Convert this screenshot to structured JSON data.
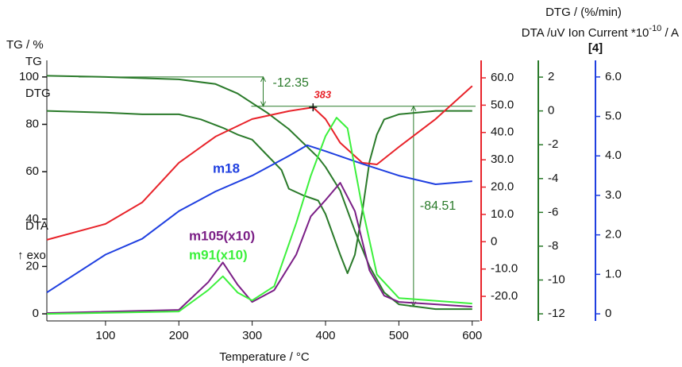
{
  "chart_data": {
    "type": "line",
    "xlabel": "Temperature / °C",
    "ylabel": "TG / %",
    "y3label": "DTG / (%/min)",
    "right_title": {
      "text": "DTA /uV Ion Current *10",
      "sup": "-10",
      "suffix": " / A"
    },
    "y4label": "[4]",
    "exo_label": "↑ exo",
    "xlim": [
      20,
      610
    ],
    "xticks": [
      100,
      200,
      300,
      400,
      500,
      600
    ],
    "ylim": [
      -3,
      107
    ],
    "yticks": [
      0,
      20,
      40,
      60,
      80,
      100
    ],
    "y2lim": [
      -29,
      66.4
    ],
    "y2ticks": [
      {
        "value": -20,
        "label": "-20.0"
      },
      {
        "value": -10,
        "label": "-10.0"
      },
      0,
      {
        "value": 10,
        "label": "10.0"
      },
      {
        "value": 20,
        "label": "20.0"
      },
      {
        "value": 30,
        "label": "30.0"
      },
      {
        "value": 40,
        "label": "40.0"
      },
      {
        "value": 50,
        "label": "50.0"
      },
      {
        "value": 60,
        "label": "60.0"
      }
    ],
    "y3lim": [
      -12.42,
      2.99
    ],
    "y3ticks": [
      -12,
      -10,
      -8,
      -6,
      -4,
      -2,
      0,
      2
    ],
    "y4lim": [
      -0.18,
      6.42
    ],
    "y4ticks": [
      0,
      {
        "value": 1,
        "label": "1.0"
      },
      {
        "value": 2,
        "label": "2.0"
      },
      {
        "value": 3,
        "label": "3.0"
      },
      {
        "value": 4,
        "label": "4.0"
      },
      {
        "value": 5,
        "label": "5.0"
      },
      {
        "value": 6,
        "label": "6.0"
      }
    ],
    "series": [
      {
        "name": "TG",
        "color": "#2a7a2a",
        "axis": "y",
        "x": [
          20,
          100,
          200,
          250,
          280,
          300,
          320,
          350,
          370,
          390,
          400,
          420,
          440,
          460,
          480,
          500,
          550,
          600
        ],
        "values": [
          100.5,
          100,
          99,
          97,
          93,
          89,
          85,
          78,
          72,
          66,
          62,
          52,
          35,
          20,
          9,
          4,
          2,
          2
        ]
      },
      {
        "name": "DTG",
        "color": "#2a7a2a",
        "axis": "y3",
        "x": [
          20,
          100,
          150,
          200,
          230,
          260,
          280,
          300,
          320,
          340,
          350,
          370,
          390,
          400,
          420,
          430,
          440,
          450,
          460,
          470,
          480,
          500,
          550,
          600
        ],
        "values": [
          0,
          -0.1,
          -0.2,
          -0.2,
          -0.5,
          -1,
          -1.4,
          -1.7,
          -2.6,
          -3.5,
          -4.6,
          -5,
          -5.3,
          -6.1,
          -8.5,
          -9.6,
          -8.5,
          -6,
          -3,
          -1.4,
          -0.5,
          -0.2,
          0,
          0
        ]
      },
      {
        "name": "DTA",
        "color": "#e8232a",
        "axis": "y2",
        "x": [
          20,
          100,
          150,
          200,
          250,
          300,
          350,
          383,
          400,
          420,
          450,
          470,
          500,
          550,
          600
        ],
        "values": [
          0.7,
          6.5,
          14.4,
          28.9,
          38.5,
          44.9,
          47.8,
          49.2,
          44.9,
          36.2,
          28.9,
          28.3,
          34.7,
          44.9,
          57
        ]
      },
      {
        "name": "m18",
        "color": "#1f3fe0",
        "axis": "y4",
        "x": [
          20,
          100,
          150,
          200,
          250,
          300,
          350,
          375,
          400,
          450,
          500,
          550,
          600
        ],
        "values": [
          0.54,
          1.5,
          1.9,
          2.6,
          3.1,
          3.5,
          4.0,
          4.27,
          4.12,
          3.8,
          3.5,
          3.28,
          3.36
        ]
      },
      {
        "name": "m105(x10)",
        "color": "#7b1f86",
        "axis": "y4",
        "x": [
          20,
          200,
          240,
          260,
          280,
          300,
          330,
          360,
          380,
          400,
          420,
          440,
          460,
          480,
          500,
          600
        ],
        "values": [
          0.02,
          0.1,
          0.8,
          1.3,
          0.74,
          0.3,
          0.6,
          1.5,
          2.47,
          2.88,
          3.32,
          2.6,
          1.1,
          0.46,
          0.3,
          0.18
        ]
      },
      {
        "name": "m91(x10)",
        "color": "#3cf03c",
        "axis": "y4",
        "x": [
          20,
          200,
          240,
          260,
          280,
          300,
          330,
          360,
          380,
          400,
          415,
          430,
          450,
          470,
          500,
          600
        ],
        "values": [
          0,
          0.06,
          0.6,
          0.95,
          0.54,
          0.34,
          0.7,
          2.3,
          3.5,
          4.5,
          4.97,
          4.7,
          2.7,
          1.0,
          0.4,
          0.26
        ]
      }
    ],
    "annotations": [
      {
        "label": "-12.35",
        "x": 315,
        "from": 100,
        "to": 87.65
      },
      {
        "label": "-84.51",
        "x": 520,
        "from": 87.65,
        "to": 3.14
      }
    ],
    "peak": {
      "label": "383",
      "x": 383,
      "value": 49.2
    }
  }
}
